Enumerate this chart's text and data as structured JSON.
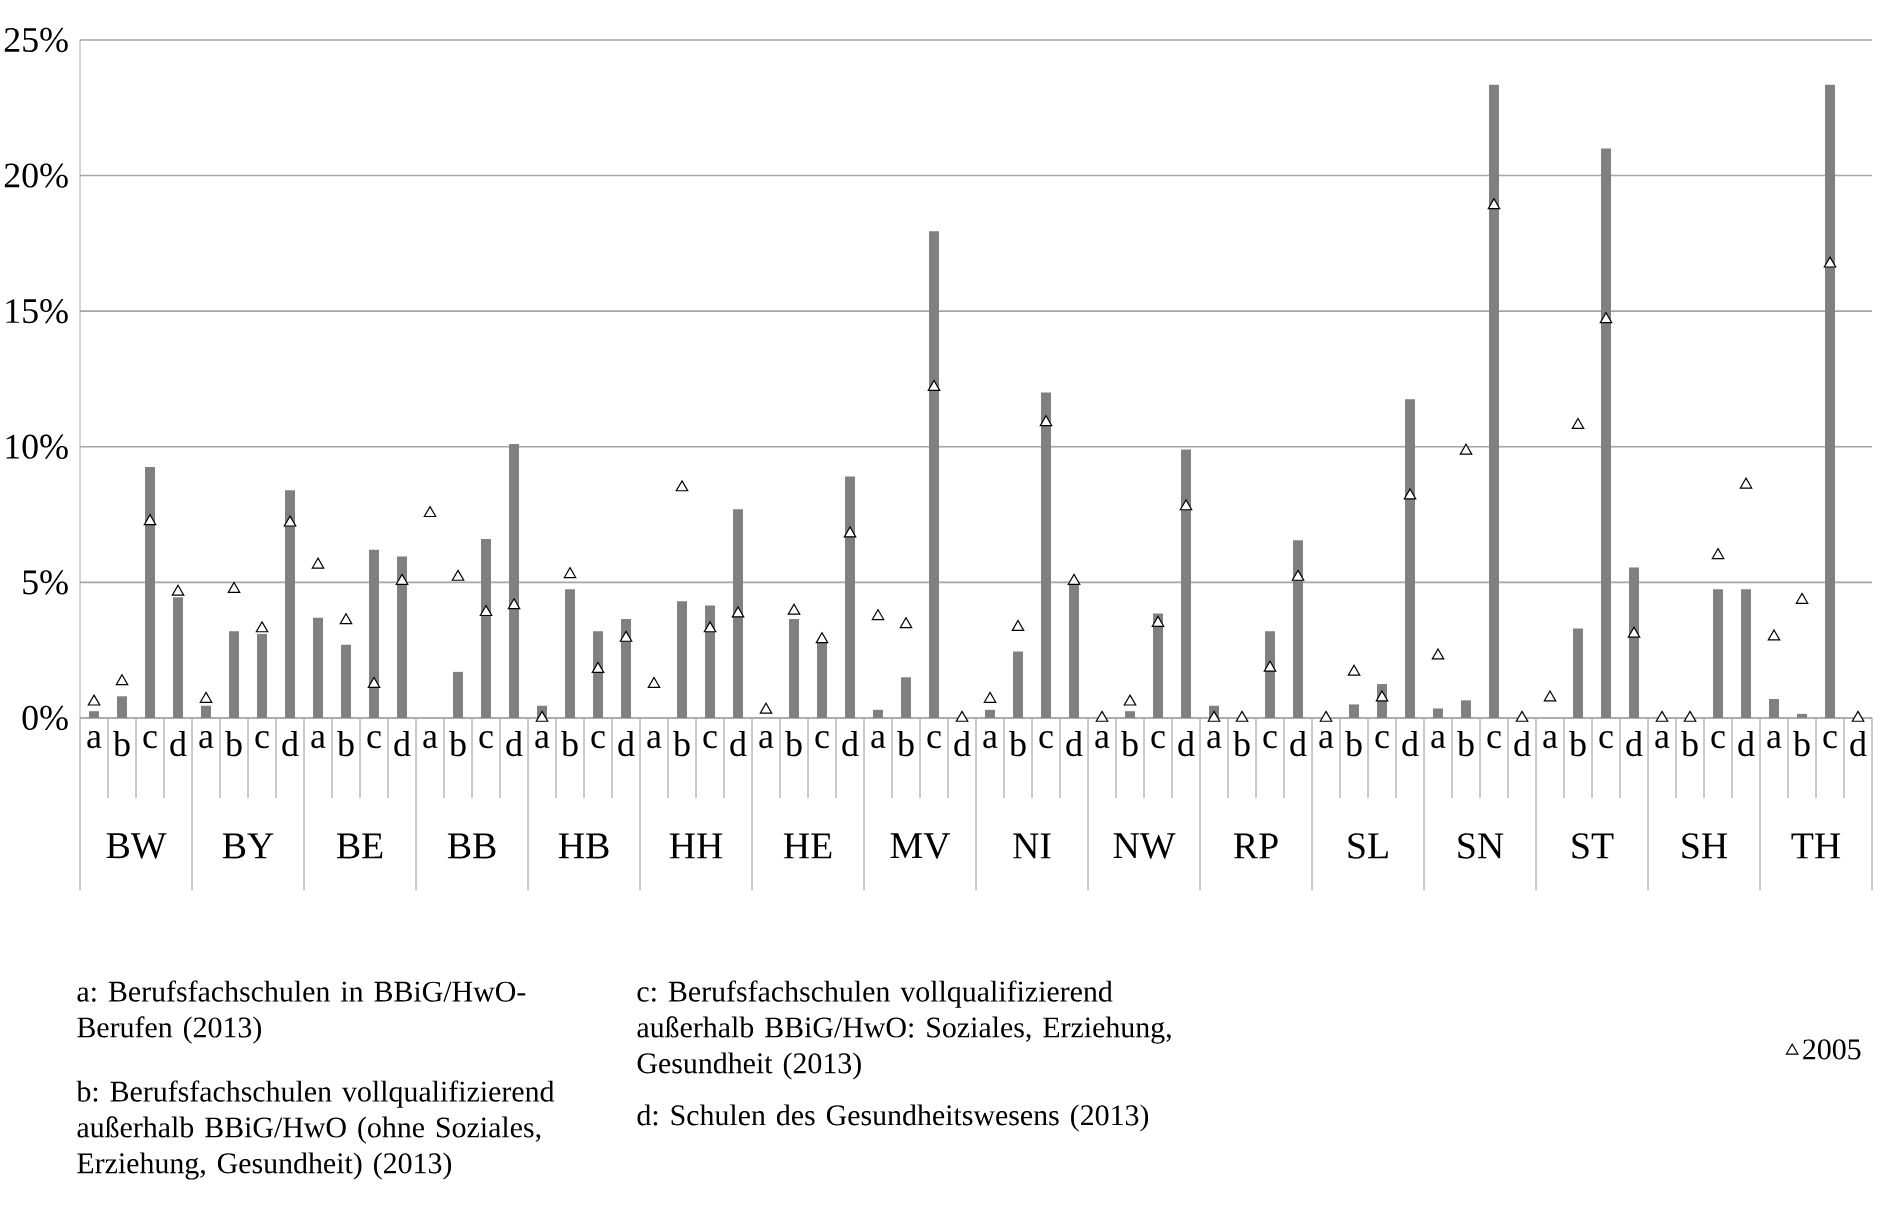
{
  "chart_data": {
    "type": "bar",
    "categories": [
      "a",
      "b",
      "c",
      "d",
      "a",
      "b",
      "c",
      "d",
      "a",
      "b",
      "c",
      "d",
      "a",
      "b",
      "c",
      "d",
      "a",
      "b",
      "c",
      "d",
      "a",
      "b",
      "c",
      "d",
      "a",
      "b",
      "c",
      "d",
      "a",
      "b",
      "c",
      "d",
      "a",
      "b",
      "c",
      "d",
      "a",
      "b",
      "c",
      "d",
      "a",
      "b",
      "c",
      "d",
      "a",
      "b",
      "c",
      "d",
      "a",
      "b",
      "c",
      "d",
      "a",
      "b",
      "c",
      "d",
      "a",
      "b",
      "c",
      "d",
      "a",
      "b",
      "c",
      "d"
    ],
    "series": [
      {
        "color": "#808080",
        "values": [
          0.25,
          0.8,
          9.25,
          4.45,
          0.45,
          3.2,
          3.1,
          8.4,
          3.7,
          2.7,
          6.2,
          5.95,
          0,
          1.7,
          6.6,
          10.1,
          0.45,
          4.75,
          3.2,
          3.65,
          0,
          4.3,
          4.15,
          7.7,
          0,
          3.65,
          2.8,
          8.9,
          0.3,
          1.5,
          17.95,
          0,
          0.3,
          2.45,
          12.0,
          5.0,
          0,
          0.25,
          3.85,
          9.9,
          0.45,
          0,
          3.2,
          6.55,
          0,
          0.5,
          1.25,
          11.75,
          0.35,
          0.65,
          23.35,
          0,
          0,
          3.3,
          21.0,
          5.55,
          0,
          0,
          4.75,
          4.75,
          0.7,
          0.15,
          23.35,
          0
        ]
      },
      {
        "type": "scatter",
        "name": "2005",
        "color": "#000000",
        "marker": "triangle",
        "values": [
          0.6,
          1.35,
          7.25,
          4.65,
          0.7,
          4.75,
          3.3,
          7.2,
          5.65,
          3.6,
          1.25,
          5.05,
          7.55,
          5.2,
          3.9,
          4.15,
          0,
          5.3,
          1.8,
          2.95,
          1.25,
          8.5,
          3.3,
          3.85,
          0.3,
          3.95,
          2.9,
          6.8,
          3.75,
          3.45,
          12.2,
          0,
          0.7,
          3.35,
          10.9,
          5.05,
          0,
          0.6,
          3.5,
          7.8,
          0,
          0,
          1.85,
          5.2,
          0,
          1.7,
          0.75,
          8.2,
          2.3,
          9.85,
          18.9,
          0,
          0.75,
          10.8,
          14.7,
          3.1,
          0,
          0,
          6.0,
          8.6,
          3.0,
          4.35,
          16.75,
          0
        ]
      }
    ],
    "ylim": [
      0,
      25
    ],
    "yticks": [
      {
        "value": 0,
        "label": "0%"
      },
      {
        "value": 5,
        "label": "5%"
      },
      {
        "value": 10,
        "label": "10%"
      },
      {
        "value": 15,
        "label": "15%"
      },
      {
        "value": 20,
        "label": "20%"
      },
      {
        "value": 25,
        "label": "25%"
      }
    ],
    "grid": "y",
    "legend": "bottom right",
    "annotations": [
      "BW",
      "BY",
      "BE",
      "BB",
      "HB",
      "HH",
      "HE",
      "MV",
      "NI",
      "NW",
      "RP",
      "SL",
      "SN",
      "ST",
      "SH",
      "TH",
      "a: Berufsfachschulen in BBiG/HwO-Berufen (2013)",
      "b: Berufsfachschulen vollqualifizierend außerhalb BBiG/HwO (ohne Soziales, Erziehung, Gesundheit) (2013)",
      "c: Berufsfachschulen vollqualifizierend außerhalb BBiG/HwO: Soziales, Erziehung, Gesundheit (2013)",
      "d: Schulen des Gesundheitswesens (2013)"
    ]
  }
}
